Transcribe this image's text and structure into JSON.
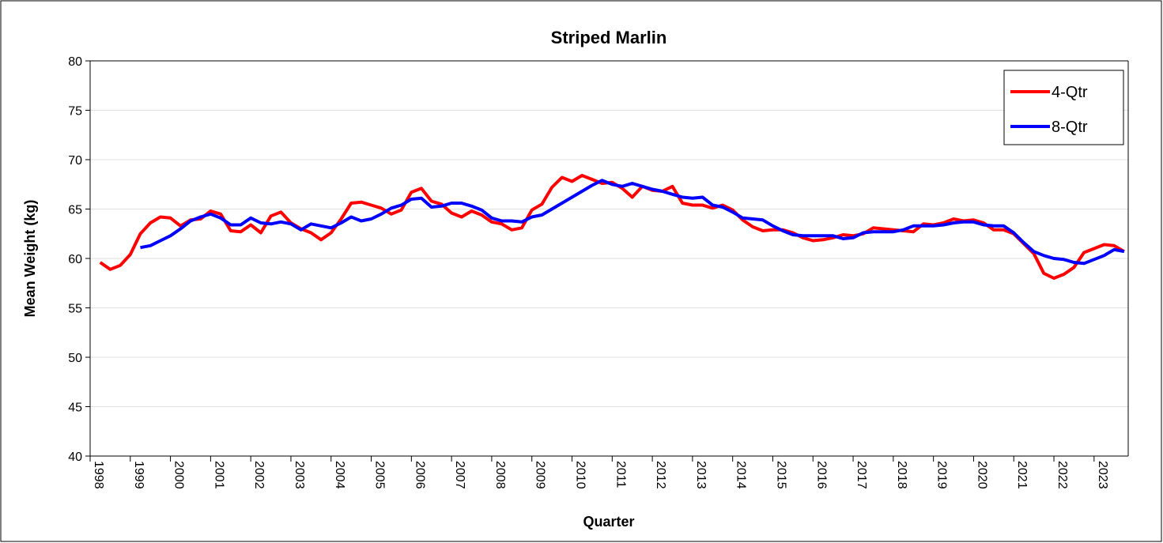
{
  "chart_data": {
    "type": "line",
    "title": "Striped Marlin",
    "x_label": "Quarter",
    "y_label": "Mean Weight (kg)",
    "x": [
      1998.25,
      1998.5,
      1998.75,
      1999,
      1999.25,
      1999.5,
      1999.75,
      2000,
      2000.25,
      2000.5,
      2000.75,
      2001,
      2001.25,
      2001.5,
      2001.75,
      2002,
      2002.25,
      2002.5,
      2002.75,
      2003,
      2003.25,
      2003.5,
      2003.75,
      2004,
      2004.25,
      2004.5,
      2004.75,
      2005,
      2005.25,
      2005.5,
      2005.75,
      2006,
      2006.25,
      2006.5,
      2006.75,
      2007,
      2007.25,
      2007.5,
      2007.75,
      2008,
      2008.25,
      2008.5,
      2008.75,
      2009,
      2009.25,
      2009.5,
      2009.75,
      2010,
      2010.25,
      2010.5,
      2010.75,
      2011,
      2011.25,
      2011.5,
      2011.75,
      2012,
      2012.25,
      2012.5,
      2012.75,
      2013,
      2013.25,
      2013.5,
      2013.75,
      2014,
      2014.25,
      2014.5,
      2014.75,
      2015,
      2015.25,
      2015.5,
      2015.75,
      2016,
      2016.25,
      2016.5,
      2016.75,
      2017,
      2017.25,
      2017.5,
      2017.75,
      2018,
      2018.25,
      2018.5,
      2018.75,
      2019,
      2019.25,
      2019.5,
      2019.75,
      2020,
      2020.25,
      2020.5,
      2020.75,
      2021,
      2021.25,
      2021.5,
      2021.75,
      2022,
      2022.25,
      2022.5,
      2022.75,
      2023,
      2023.25,
      2023.5,
      2023.75
    ],
    "series": [
      {
        "name": "4-Qtr",
        "color": "#ff0000",
        "values": [
          59.6,
          58.9,
          59.3,
          60.4,
          62.5,
          63.6,
          64.2,
          64.1,
          63.3,
          63.9,
          64.0,
          64.8,
          64.5,
          62.8,
          62.7,
          63.4,
          62.6,
          64.3,
          64.7,
          63.6,
          63.0,
          62.6,
          61.9,
          62.6,
          64.0,
          65.6,
          65.7,
          65.4,
          65.1,
          64.5,
          64.9,
          66.7,
          67.1,
          65.8,
          65.5,
          64.6,
          64.2,
          64.8,
          64.4,
          63.7,
          63.5,
          62.9,
          63.1,
          64.9,
          65.5,
          67.2,
          68.2,
          67.8,
          68.4,
          68.0,
          67.6,
          67.7,
          67.1,
          66.2,
          67.3,
          66.9,
          66.8,
          67.3,
          65.6,
          65.4,
          65.4,
          65.1,
          65.4,
          64.9,
          63.9,
          63.2,
          62.8,
          62.9,
          62.9,
          62.6,
          62.1,
          61.8,
          61.9,
          62.1,
          62.4,
          62.3,
          62.5,
          63.1,
          63.0,
          62.9,
          62.8,
          62.7,
          63.5,
          63.4,
          63.6,
          64.0,
          63.8,
          63.9,
          63.6,
          62.9,
          62.9,
          62.5,
          61.5,
          60.5,
          58.5,
          58.0,
          58.4,
          59.1,
          60.6,
          61.0,
          61.4,
          61.3,
          60.7
        ]
      },
      {
        "name": "8-Qtr",
        "color": "#0000ff",
        "values": [
          null,
          null,
          null,
          null,
          61.1,
          61.3,
          61.8,
          62.3,
          63.0,
          63.8,
          64.2,
          64.5,
          64.1,
          63.4,
          63.4,
          64.1,
          63.6,
          63.5,
          63.7,
          63.5,
          62.9,
          63.5,
          63.3,
          63.1,
          63.6,
          64.2,
          63.8,
          64.0,
          64.5,
          65.1,
          65.4,
          66.0,
          66.1,
          65.2,
          65.3,
          65.6,
          65.6,
          65.3,
          64.9,
          64.1,
          63.8,
          63.8,
          63.7,
          64.2,
          64.4,
          65.0,
          65.6,
          66.2,
          66.8,
          67.4,
          67.9,
          67.5,
          67.3,
          67.6,
          67.3,
          67.0,
          66.8,
          66.5,
          66.2,
          66.1,
          66.2,
          65.4,
          65.2,
          64.7,
          64.1,
          64.0,
          63.9,
          63.3,
          62.8,
          62.4,
          62.3,
          62.3,
          62.3,
          62.3,
          62.0,
          62.1,
          62.6,
          62.7,
          62.7,
          62.7,
          62.9,
          63.3,
          63.3,
          63.3,
          63.4,
          63.6,
          63.7,
          63.7,
          63.4,
          63.3,
          63.3,
          62.6,
          61.6,
          60.7,
          60.3,
          60.0,
          59.9,
          59.6,
          59.5,
          59.9,
          60.3,
          60.9,
          60.7
        ]
      }
    ],
    "xlim": [
      1998,
      2023.85
    ],
    "xticks": [
      1998,
      1999,
      2000,
      2001,
      2002,
      2003,
      2004,
      2005,
      2006,
      2007,
      2008,
      2009,
      2010,
      2011,
      2012,
      2013,
      2014,
      2015,
      2016,
      2017,
      2018,
      2019,
      2020,
      2021,
      2022,
      2023
    ],
    "ylim": [
      40,
      80
    ],
    "yticks": [
      40,
      45,
      50,
      55,
      60,
      65,
      70,
      75,
      80
    ],
    "grid": true,
    "legend": "upper right"
  }
}
